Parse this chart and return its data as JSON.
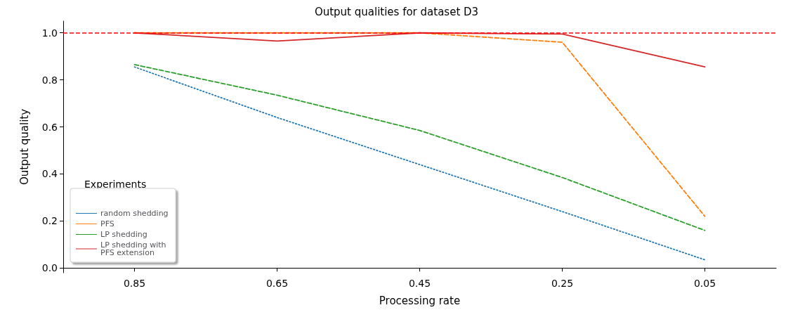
{
  "chart_data": {
    "type": "line",
    "title": "Output qualities for dataset D3",
    "xlabel": "Processing rate",
    "ylabel": "Output quality",
    "legend_title": "Experiments",
    "categories": [
      "0.85",
      "0.65",
      "0.45",
      "0.25",
      "0.05"
    ],
    "series": [
      {
        "name": "random shedding",
        "color": "#1f77b4",
        "line_style": "dotted",
        "values": [
          0.855,
          0.64,
          0.44,
          0.24,
          0.035
        ]
      },
      {
        "name": "PFS",
        "color": "#ff7f0e",
        "line_style": "dashed",
        "values": [
          1.0,
          1.0,
          1.0,
          0.96,
          0.22
        ]
      },
      {
        "name": "LP shedding",
        "color": "#2ca02c",
        "line_style": "dashed",
        "values": [
          0.865,
          0.735,
          0.585,
          0.385,
          0.16
        ]
      },
      {
        "name": "LP shedding with PFS extension",
        "color": "#d62728",
        "line_style": "solid",
        "values": [
          1.0,
          0.965,
          1.0,
          0.995,
          0.855
        ]
      }
    ],
    "ylim": [
      -0.02,
      1.05
    ],
    "yticks": [
      {
        "value": 0,
        "label": "0.0"
      },
      {
        "value": 0.2,
        "label": "0.2"
      },
      {
        "value": 0.4,
        "label": "0.4"
      },
      {
        "value": 0.6,
        "label": "0.6"
      },
      {
        "value": 0.8,
        "label": "0.8"
      },
      {
        "value": 1,
        "label": "1.0"
      }
    ],
    "ref_lines": [
      {
        "axis": "y",
        "value": 1,
        "color": "#ff0000",
        "line_style": "dashed"
      }
    ],
    "grid": false,
    "legend": "bottom left",
    "marker": "none"
  }
}
